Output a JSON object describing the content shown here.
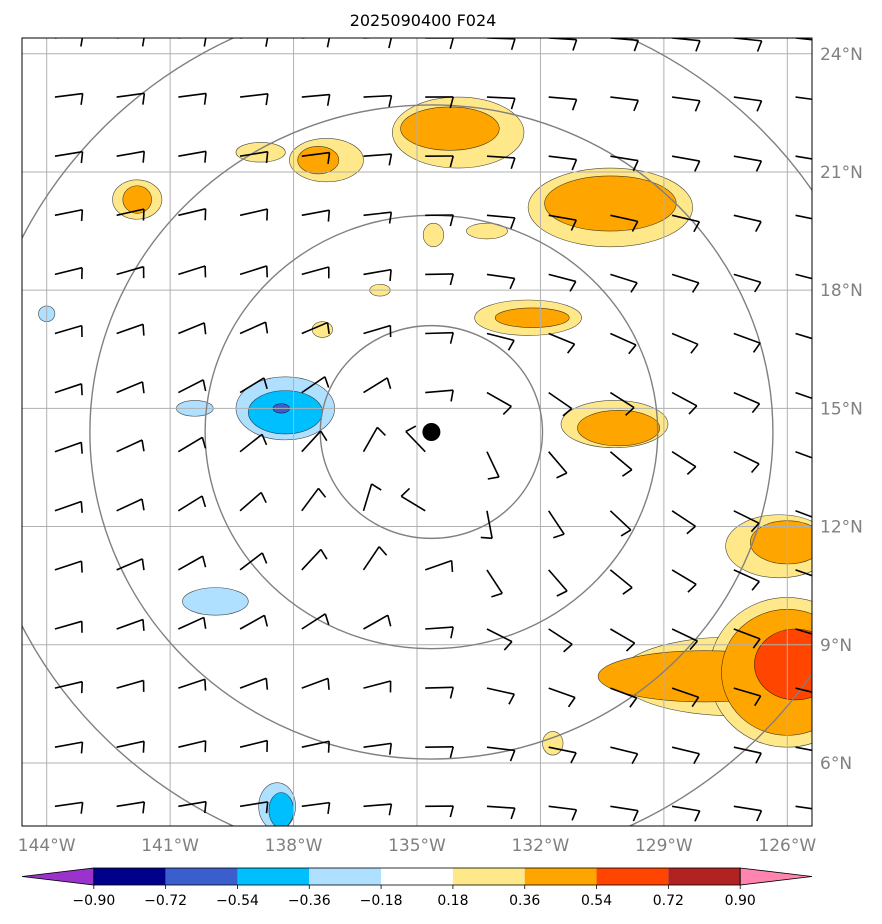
{
  "title": "2025090400 F024",
  "map": {
    "lon_range": [
      -144.6,
      -125.4
    ],
    "lat_range": [
      4.4,
      24.4
    ],
    "lon_ticks": [
      {
        "lon": -144,
        "label": "144°W"
      },
      {
        "lon": -141,
        "label": "141°W"
      },
      {
        "lon": -138,
        "label": "138°W"
      },
      {
        "lon": -135,
        "label": "135°W"
      },
      {
        "lon": -132,
        "label": "132°W"
      },
      {
        "lon": -129,
        "label": "129°W"
      },
      {
        "lon": -126,
        "label": "126°W"
      }
    ],
    "lat_ticks": [
      {
        "lat": 6,
        "label": "6°N"
      },
      {
        "lat": 9,
        "label": "9°N"
      },
      {
        "lat": 12,
        "label": "12°N"
      },
      {
        "lat": 15,
        "label": "15°N"
      },
      {
        "lat": 18,
        "label": "18°N"
      },
      {
        "lat": 21,
        "label": "21°N"
      },
      {
        "lat": 24,
        "label": "24°N"
      }
    ],
    "gridlines": true,
    "center": {
      "lon": -134.65,
      "lat": 14.4
    },
    "range_ring_radii_deg": [
      2.7,
      5.5,
      8.3,
      11.1
    ],
    "ring_color": "#808080",
    "grid_color": "#b0b0b0"
  },
  "colorbar": {
    "ticks": [
      "−0.90",
      "−0.72",
      "−0.54",
      "−0.36",
      "−0.18",
      "0.18",
      "0.36",
      "0.54",
      "0.72",
      "0.90"
    ],
    "colors": [
      "#9933cc",
      "#00008b",
      "#3a5fcd",
      "#00bfff",
      "#b0e0ff",
      "#ffffff",
      "#ffe88a",
      "#ffa500",
      "#ff4500",
      "#b22222",
      "#ff85b0"
    ],
    "extend": "both"
  },
  "fields": [
    {
      "level": "0.18",
      "color": "#ffe88a",
      "lon": -134.0,
      "lat": 22.0,
      "rlon": 1.6,
      "rlat": 0.9
    },
    {
      "level": "0.36",
      "color": "#ffa500",
      "lon": -134.2,
      "lat": 22.1,
      "rlon": 1.2,
      "rlat": 0.55
    },
    {
      "level": "0.18",
      "color": "#ffe88a",
      "lon": -137.2,
      "lat": 21.3,
      "rlon": 0.9,
      "rlat": 0.55
    },
    {
      "level": "0.36",
      "color": "#ffa500",
      "lon": -137.4,
      "lat": 21.3,
      "rlon": 0.5,
      "rlat": 0.35
    },
    {
      "level": "0.18",
      "color": "#ffe88a",
      "lon": -138.8,
      "lat": 21.5,
      "rlon": 0.6,
      "rlat": 0.25
    },
    {
      "level": "0.18",
      "color": "#ffe88a",
      "lon": -141.8,
      "lat": 20.3,
      "rlon": 0.6,
      "rlat": 0.5
    },
    {
      "level": "0.36",
      "color": "#ffa500",
      "lon": -141.8,
      "lat": 20.3,
      "rlon": 0.35,
      "rlat": 0.35
    },
    {
      "level": "0.18",
      "color": "#ffe88a",
      "lon": -130.3,
      "lat": 20.1,
      "rlon": 2.0,
      "rlat": 1.0
    },
    {
      "level": "0.36",
      "color": "#ffa500",
      "lon": -130.3,
      "lat": 20.2,
      "rlon": 1.6,
      "rlat": 0.7
    },
    {
      "level": "0.18",
      "color": "#ffe88a",
      "lon": -132.3,
      "lat": 17.3,
      "rlon": 1.3,
      "rlat": 0.45
    },
    {
      "level": "0.36",
      "color": "#ffa500",
      "lon": -132.2,
      "lat": 17.3,
      "rlon": 0.9,
      "rlat": 0.25
    },
    {
      "level": "0.18",
      "color": "#ffe88a",
      "lon": -130.2,
      "lat": 14.6,
      "rlon": 1.3,
      "rlat": 0.6
    },
    {
      "level": "0.36",
      "color": "#ffa500",
      "lon": -130.1,
      "lat": 14.5,
      "rlon": 1.0,
      "rlat": 0.45
    },
    {
      "level": "0.18",
      "color": "#ffe88a",
      "lon": -134.6,
      "lat": 19.4,
      "rlon": 0.25,
      "rlat": 0.3
    },
    {
      "level": "0.18",
      "color": "#ffe88a",
      "lon": -133.3,
      "lat": 19.5,
      "rlon": 0.5,
      "rlat": 0.2
    },
    {
      "level": "0.18",
      "color": "#ffe88a",
      "lon": -135.9,
      "lat": 18.0,
      "rlon": 0.25,
      "rlat": 0.15
    },
    {
      "level": "0.18",
      "color": "#ffe88a",
      "lon": -137.3,
      "lat": 17.0,
      "rlon": 0.25,
      "rlat": 0.2
    },
    {
      "level": "-0.18",
      "color": "#b0e0ff",
      "lon": -138.2,
      "lat": 15.0,
      "rlon": 1.2,
      "rlat": 0.8
    },
    {
      "level": "-0.36",
      "color": "#00bfff",
      "lon": -138.2,
      "lat": 14.9,
      "rlon": 0.9,
      "rlat": 0.55
    },
    {
      "level": "-0.54",
      "color": "#3a5fcd",
      "lon": -138.3,
      "lat": 15.0,
      "rlon": 0.2,
      "rlat": 0.12
    },
    {
      "level": "-0.18",
      "color": "#b0e0ff",
      "lon": -140.4,
      "lat": 15.0,
      "rlon": 0.45,
      "rlat": 0.2
    },
    {
      "level": "-0.18",
      "color": "#b0e0ff",
      "lon": -144.0,
      "lat": 17.4,
      "rlon": 0.2,
      "rlat": 0.2
    },
    {
      "level": "-0.18",
      "color": "#b0e0ff",
      "lon": -139.9,
      "lat": 10.1,
      "rlon": 0.8,
      "rlat": 0.35
    },
    {
      "level": "-0.18",
      "color": "#b0e0ff",
      "lon": -138.4,
      "lat": 4.9,
      "rlon": 0.45,
      "rlat": 0.6
    },
    {
      "level": "-0.36",
      "color": "#00bfff",
      "lon": -138.3,
      "lat": 4.8,
      "rlon": 0.3,
      "rlat": 0.45
    },
    {
      "level": "0.18",
      "color": "#ffe88a",
      "lon": -126.2,
      "lat": 11.5,
      "rlon": 1.3,
      "rlat": 0.8
    },
    {
      "level": "0.36",
      "color": "#ffa500",
      "lon": -126.0,
      "lat": 11.6,
      "rlon": 0.9,
      "rlat": 0.55
    },
    {
      "level": "0.18",
      "color": "#ffe88a",
      "lon": -127.3,
      "lat": 8.2,
      "rlon": 2.8,
      "rlat": 1.0
    },
    {
      "level": "0.18",
      "color": "#ffe88a",
      "lon": -126.0,
      "lat": 8.3,
      "rlon": 1.9,
      "rlat": 1.9
    },
    {
      "level": "0.36",
      "color": "#ffa500",
      "lon": -128.0,
      "lat": 8.2,
      "rlon": 2.6,
      "rlat": 0.65
    },
    {
      "level": "0.36",
      "color": "#ffa500",
      "lon": -126.0,
      "lat": 8.3,
      "rlon": 1.6,
      "rlat": 1.6
    },
    {
      "level": "0.54",
      "color": "#ff4500",
      "lon": -125.8,
      "lat": 8.5,
      "rlon": 1.0,
      "rlat": 0.9
    },
    {
      "level": "0.18",
      "color": "#ffe88a",
      "lon": -131.7,
      "lat": 6.5,
      "rlon": 0.25,
      "rlat": 0.3
    }
  ],
  "wind_barbs": {
    "lon_step": 1.5,
    "lat_step": 1.5,
    "color": "#000000"
  }
}
